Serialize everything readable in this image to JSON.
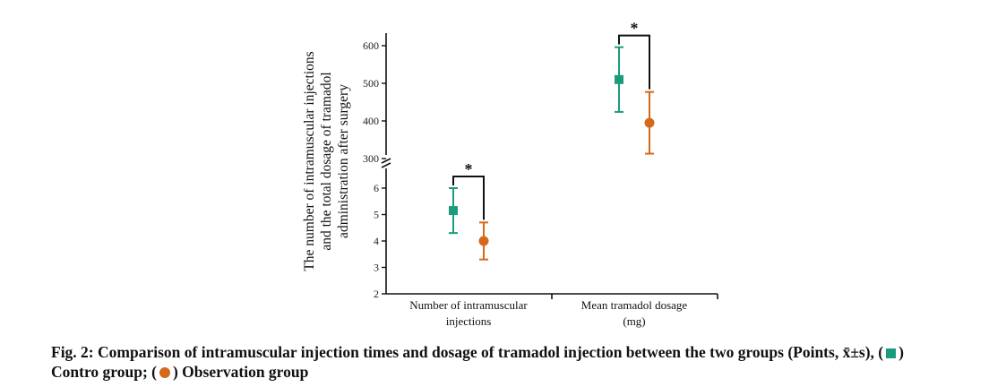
{
  "chart_data": {
    "type": "scatter",
    "ylabel_lines": [
      "The number of intramuscular injections",
      "and the total dosage of tramadol",
      "administration after surgery"
    ],
    "categories": [
      "Number of intramuscular injections",
      "Mean tramadol dosage (mg)"
    ],
    "category_label_lines": [
      [
        "Number of intramuscular",
        "injections"
      ],
      [
        "Mean tramadol dosage",
        "(mg)"
      ]
    ],
    "y_axis_break": true,
    "lower_axis": {
      "ylim": [
        2,
        6.5
      ],
      "ticks": [
        2,
        3,
        4,
        5,
        6
      ]
    },
    "upper_axis": {
      "ylim": [
        290,
        640
      ],
      "ticks": [
        300,
        400,
        500,
        600
      ]
    },
    "series": [
      {
        "name": "Contro group",
        "marker": "square",
        "color": "#1a9b7d",
        "points": [
          {
            "category": 0,
            "mean": 5.15,
            "low": 4.3,
            "high": 6.0
          },
          {
            "category": 1,
            "mean": 510,
            "low": 424,
            "high": 596
          }
        ]
      },
      {
        "name": "Observation group",
        "marker": "circle",
        "color": "#d4691a",
        "points": [
          {
            "category": 0,
            "mean": 4.0,
            "low": 3.3,
            "high": 4.7
          },
          {
            "category": 1,
            "mean": 395,
            "low": 313,
            "high": 477
          }
        ]
      }
    ],
    "annotations": [
      {
        "category": 0,
        "text": "*"
      },
      {
        "category": 1,
        "text": "*"
      }
    ]
  },
  "caption": {
    "label": "Fig. 2:",
    "text": "Comparison of intramuscular injection times and dosage of tramadol injection between the two groups (Points, x̄±s), (",
    "legend_square_text": ")",
    "line2_text": "Contro group; (",
    "legend_circle_text": ") Observation group"
  },
  "colors": {
    "contro": "#1a9b7d",
    "observation": "#d4691a",
    "axis": "#111111"
  }
}
